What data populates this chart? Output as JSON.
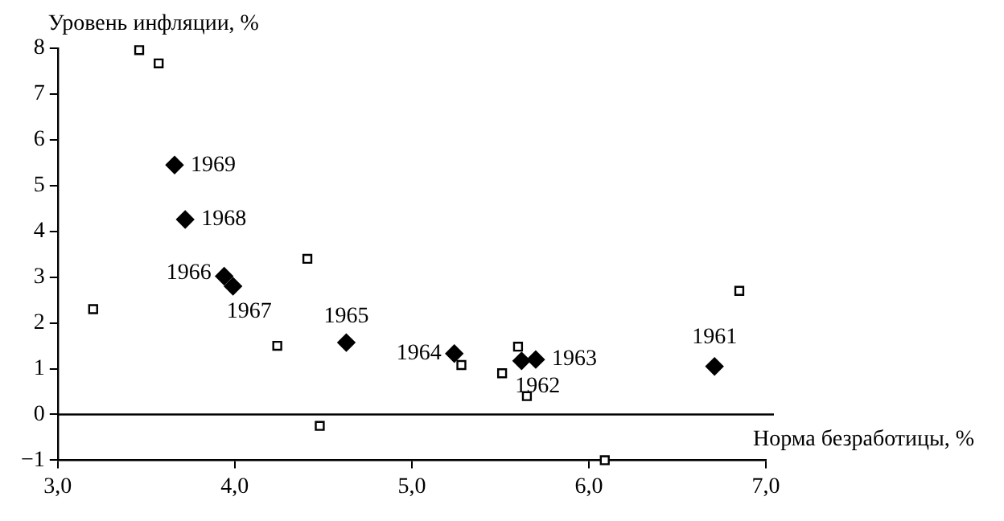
{
  "chart_data": {
    "type": "scatter",
    "xlabel": "Норма безработицы, %",
    "ylabel": "Уровень инфляции, %",
    "xlim": [
      3.0,
      7.0
    ],
    "xticks": [
      {
        "value": 3,
        "label": "3,0"
      },
      {
        "value": 4,
        "label": "4,0"
      },
      {
        "value": 5,
        "label": "5,0"
      },
      {
        "value": 6,
        "label": "6,0"
      },
      {
        "value": 7,
        "label": "7,0"
      }
    ],
    "ylim": [
      -1,
      8
    ],
    "yticks": [
      {
        "value": -1,
        "label": "−1"
      },
      0,
      1,
      2,
      3,
      4,
      5,
      6,
      7,
      8
    ],
    "grid": false,
    "legend": false,
    "series": [
      {
        "color": "#000000",
        "marker": "diamond",
        "x": [
          3.66,
          3.72,
          3.94,
          3.99,
          4.63,
          5.24,
          5.62,
          5.7,
          6.71
        ],
        "values": [
          5.45,
          4.26,
          3.02,
          2.8,
          1.57,
          1.33,
          1.17,
          1.2,
          1.05
        ]
      },
      {
        "color": "#000000",
        "marker": "square",
        "x": [
          3.46,
          3.57,
          3.2,
          4.41,
          4.24,
          4.48,
          5.28,
          5.51,
          5.6,
          5.65,
          6.09,
          6.85
        ],
        "values": [
          7.96,
          7.67,
          2.3,
          3.4,
          1.5,
          -0.25,
          1.08,
          0.9,
          1.48,
          0.4,
          -1.0,
          2.7
        ]
      }
    ],
    "ref_lines": [
      {
        "axis": "y",
        "value": 0,
        "color": "#000000"
      }
    ],
    "annotations": [
      {
        "text": "1969",
        "x": 3.66,
        "y": 5.45
      },
      {
        "text": "1968",
        "x": 3.72,
        "y": 4.26
      },
      {
        "text": "1966",
        "x": 3.94,
        "y": 3.02
      },
      {
        "text": "1967",
        "x": 3.99,
        "y": 2.8
      },
      {
        "text": "1965",
        "x": 4.63,
        "y": 1.57
      },
      {
        "text": "1964",
        "x": 5.24,
        "y": 1.33
      },
      {
        "text": "1962",
        "x": 5.62,
        "y": 1.17
      },
      {
        "text": "1963",
        "x": 5.7,
        "y": 1.2
      },
      {
        "text": "1961",
        "x": 6.71,
        "y": 1.05
      }
    ]
  }
}
